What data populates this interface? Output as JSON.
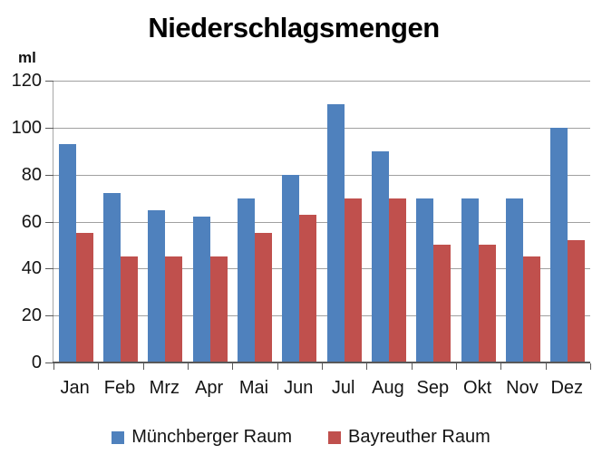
{
  "chart_data": {
    "type": "bar",
    "title": "Niederschlagsmengen",
    "ylabel": "ml",
    "xlabel": "",
    "ylim": [
      0,
      120
    ],
    "yticks": [
      120,
      100,
      80,
      60,
      40,
      20,
      0
    ],
    "grid": true,
    "legend_position": "bottom",
    "categories": [
      "Jan",
      "Feb",
      "Mrz",
      "Apr",
      "Mai",
      "Jun",
      "Jul",
      "Aug",
      "Sep",
      "Okt",
      "Nov",
      "Dez"
    ],
    "series": [
      {
        "name": "Münchberger Raum",
        "color": "#4F81BD",
        "values": [
          93,
          72,
          65,
          62,
          70,
          80,
          110,
          90,
          70,
          70,
          70,
          100
        ]
      },
      {
        "name": "Bayreuther Raum",
        "color": "#C0504D",
        "values": [
          55,
          45,
          45,
          45,
          55,
          63,
          70,
          70,
          50,
          50,
          45,
          52
        ]
      }
    ]
  },
  "colors": {
    "grid": "#a0a0a0",
    "axis": "#595959",
    "text": "#141414",
    "background": "#ffffff"
  }
}
